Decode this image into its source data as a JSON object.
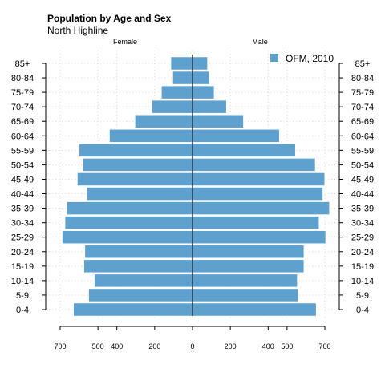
{
  "chart_data": {
    "type": "bar",
    "orientation": "horizontal-pyramid",
    "title": "Population by Age and Sex",
    "subtitle": "North Highline",
    "left_side_label": "Female",
    "right_side_label": "Male",
    "categories": [
      "0-4",
      "5-9",
      "10-14",
      "15-19",
      "20-24",
      "25-29",
      "30-34",
      "35-39",
      "40-44",
      "45-49",
      "50-54",
      "55-59",
      "60-64",
      "65-69",
      "70-74",
      "75-79",
      "80-84",
      "85+"
    ],
    "series": [
      {
        "name": "OFM, 2010",
        "female": [
          630,
          550,
          520,
          575,
          570,
          690,
          675,
          665,
          560,
          610,
          580,
          600,
          440,
          305,
          215,
          165,
          105,
          115
        ],
        "male": [
          655,
          560,
          555,
          590,
          590,
          705,
          670,
          725,
          690,
          700,
          650,
          545,
          460,
          270,
          180,
          115,
          90,
          80
        ]
      }
    ],
    "x_ticks": [
      "700",
      "500",
      "400",
      "200",
      "0",
      "200",
      "400",
      "500",
      "700"
    ],
    "x_tick_values": [
      -700,
      -500,
      -400,
      -200,
      0,
      200,
      400,
      500,
      700
    ],
    "xlim": [
      -720,
      720
    ],
    "grid": true,
    "legend_position": "top-right",
    "bar_color": "#5ea1cf",
    "center_line_color": "#1d3a4a"
  }
}
